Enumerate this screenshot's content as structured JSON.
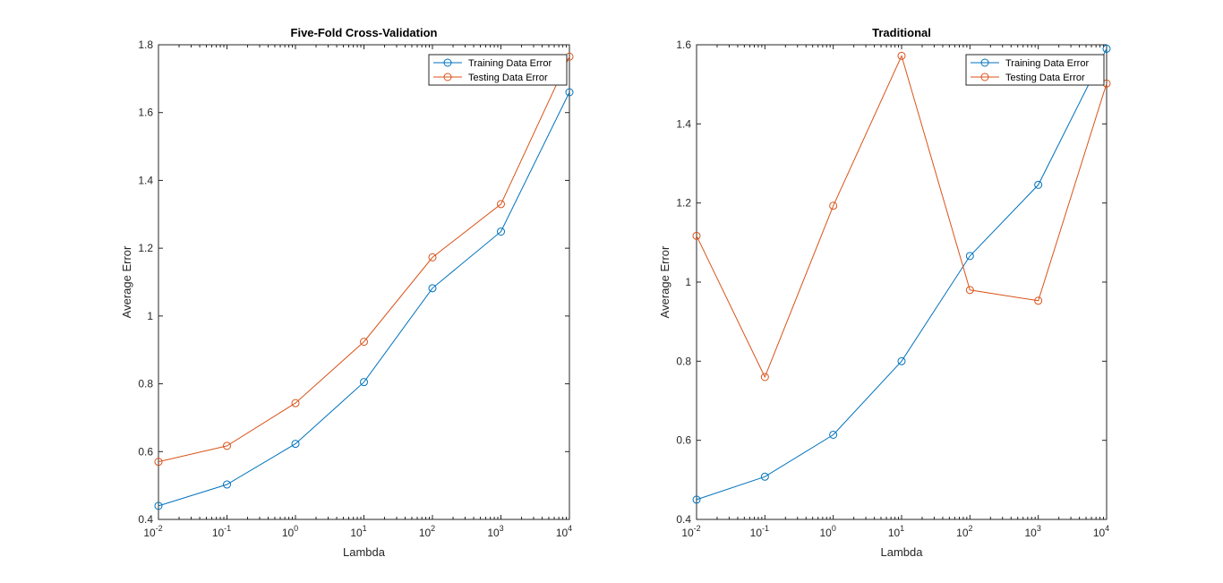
{
  "colors": {
    "train": "#0072BD",
    "test": "#D95319",
    "axes": "#262626",
    "background": "#ffffff"
  },
  "chart_data": [
    {
      "type": "line",
      "title": "Five-Fold Cross-Validation",
      "xlabel": "Lambda",
      "ylabel": "Average Error",
      "xscale": "log",
      "x": [
        0.01,
        0.1,
        1,
        10,
        100,
        1000,
        10000
      ],
      "xticks": [
        0.01,
        0.1,
        1,
        10,
        100,
        1000,
        10000
      ],
      "xtick_labels": [
        {
          "base": "10",
          "exp": "-2"
        },
        {
          "base": "10",
          "exp": "-1"
        },
        {
          "base": "10",
          "exp": "0"
        },
        {
          "base": "10",
          "exp": "1"
        },
        {
          "base": "10",
          "exp": "2"
        },
        {
          "base": "10",
          "exp": "3"
        },
        {
          "base": "10",
          "exp": "4"
        }
      ],
      "xlim": [
        0.01,
        10000
      ],
      "ylim": [
        0.4,
        1.8
      ],
      "yticks": [
        0.4,
        0.6,
        0.8,
        1.0,
        1.2,
        1.4,
        1.6,
        1.8
      ],
      "ytick_labels": [
        "0.4",
        "0.6",
        "0.8",
        "1",
        "1.2",
        "1.4",
        "1.6",
        "1.8"
      ],
      "legend_position": "top-right",
      "grid": false,
      "markers": "circle",
      "series": [
        {
          "name": "Training Data Error",
          "color": "#0072BD",
          "values": [
            0.44,
            0.503,
            0.623,
            0.805,
            1.082,
            1.249,
            1.66
          ]
        },
        {
          "name": "Testing Data Error",
          "color": "#D95319",
          "values": [
            0.57,
            0.617,
            0.743,
            0.924,
            1.173,
            1.33,
            1.765
          ]
        }
      ]
    },
    {
      "type": "line",
      "title": "Traditional",
      "xlabel": "Lambda",
      "ylabel": "Average Error",
      "xscale": "log",
      "x": [
        0.01,
        0.1,
        1,
        10,
        100,
        1000,
        10000
      ],
      "xticks": [
        0.01,
        0.1,
        1,
        10,
        100,
        1000,
        10000
      ],
      "xtick_labels": [
        {
          "base": "10",
          "exp": "-2"
        },
        {
          "base": "10",
          "exp": "-1"
        },
        {
          "base": "10",
          "exp": "0"
        },
        {
          "base": "10",
          "exp": "1"
        },
        {
          "base": "10",
          "exp": "2"
        },
        {
          "base": "10",
          "exp": "3"
        },
        {
          "base": "10",
          "exp": "4"
        }
      ],
      "xlim": [
        0.01,
        10000
      ],
      "ylim": [
        0.4,
        1.6
      ],
      "yticks": [
        0.4,
        0.6,
        0.8,
        1.0,
        1.2,
        1.4,
        1.6
      ],
      "ytick_labels": [
        "0.4",
        "0.6",
        "0.8",
        "1",
        "1.2",
        "1.4",
        "1.6"
      ],
      "legend_position": "top-right",
      "grid": false,
      "markers": "circle",
      "series": [
        {
          "name": "Training Data Error",
          "color": "#0072BD",
          "values": [
            0.45,
            0.508,
            0.614,
            0.8,
            1.066,
            1.246,
            1.59
          ]
        },
        {
          "name": "Testing Data Error",
          "color": "#D95319",
          "values": [
            1.117,
            0.76,
            1.193,
            1.572,
            0.98,
            0.953,
            1.502
          ]
        }
      ]
    }
  ]
}
